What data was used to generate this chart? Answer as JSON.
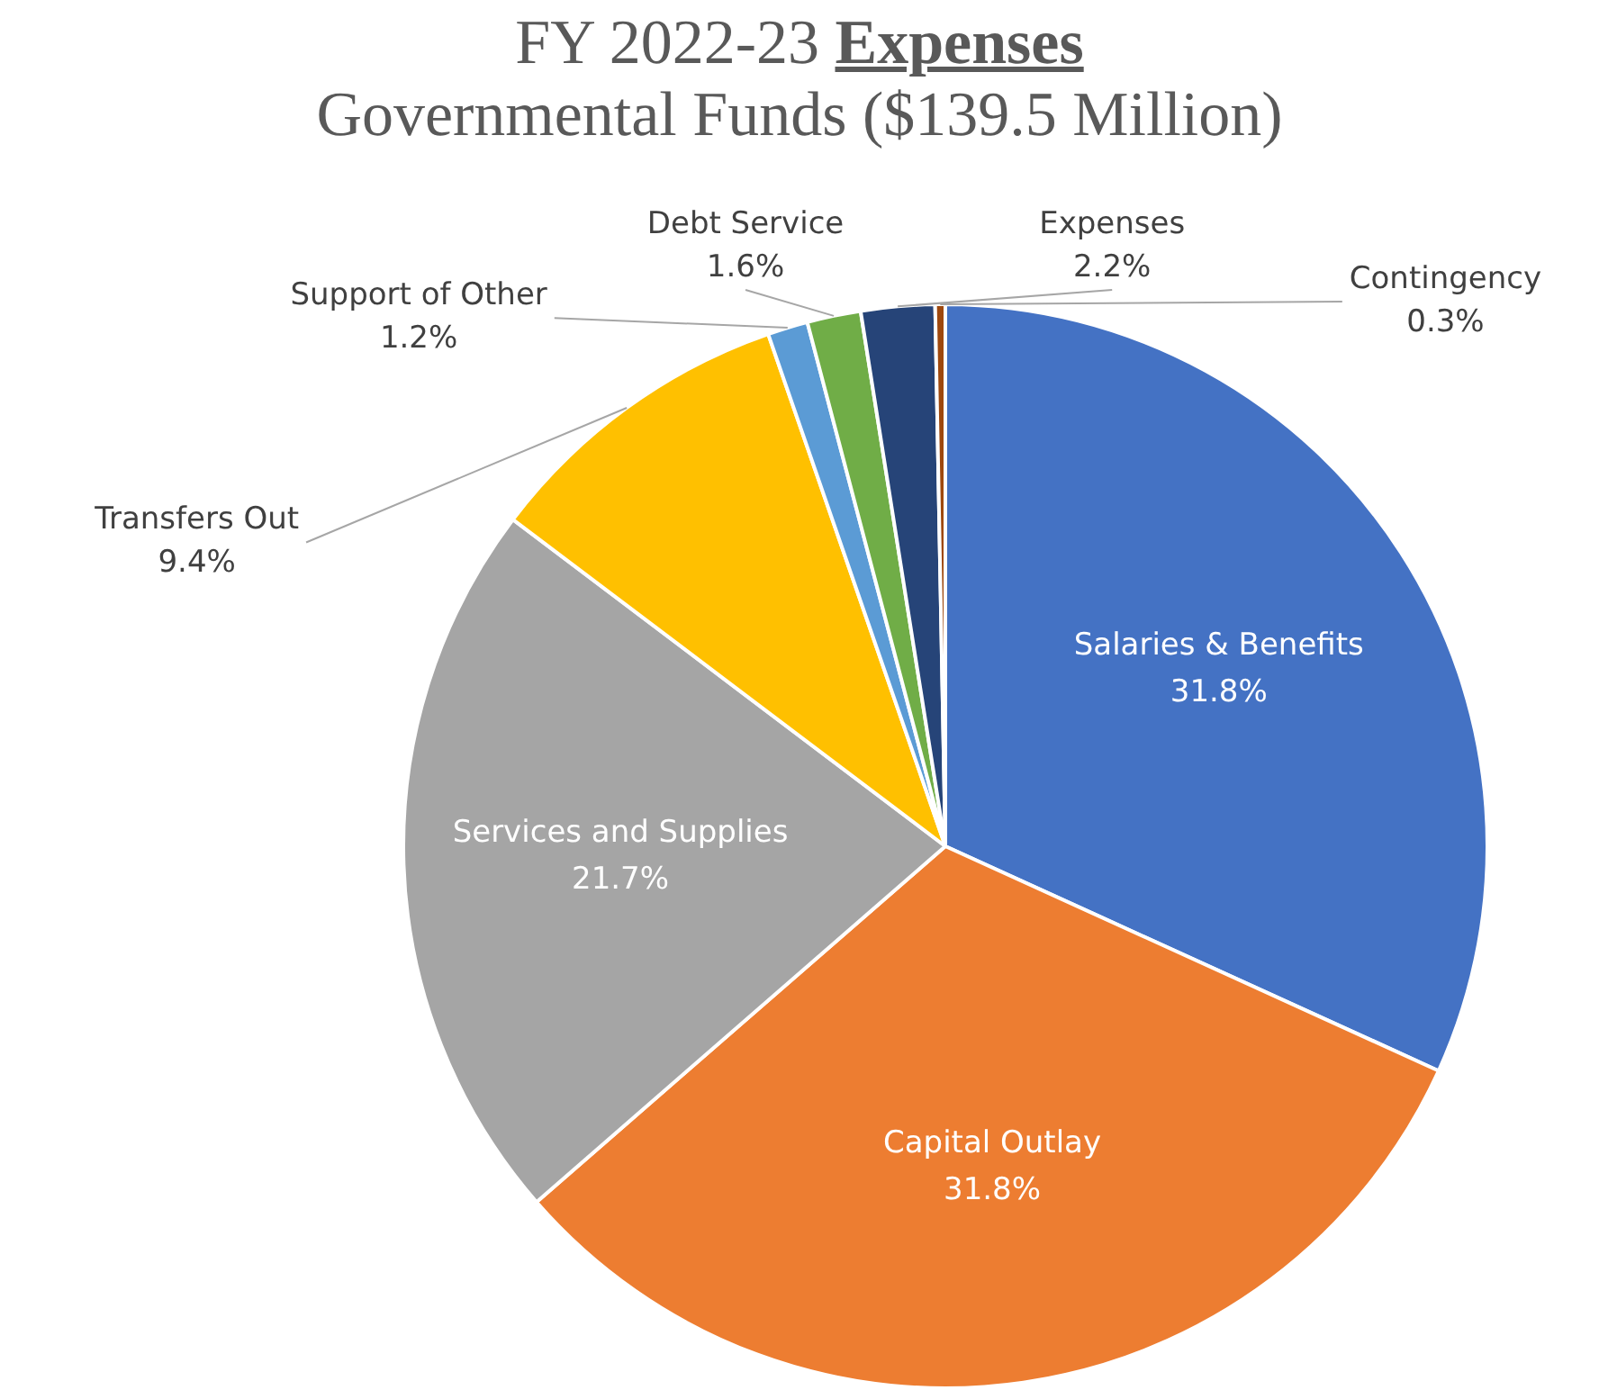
{
  "chart_data": {
    "type": "pie",
    "title": "FY 2022-23 Expenses",
    "subtitle": "Governmental Funds ($139.5 Million)",
    "categories": [
      "Salaries & Benefits",
      "Capital Outlay",
      "Services and Supplies",
      "Transfers Out",
      "Support of Other",
      "Debt Service",
      "Expenses",
      "Contingency"
    ],
    "values": [
      31.8,
      31.8,
      21.7,
      9.4,
      1.2,
      1.6,
      2.2,
      0.3
    ],
    "colors": [
      "#4472c4",
      "#ed7d31",
      "#a5a5a5",
      "#ffc000",
      "#5b9bd5",
      "#70ad47",
      "#264478",
      "#9e480e"
    ],
    "value_labels": [
      "31.8%",
      "31.8%",
      "21.7%",
      "9.4%",
      "1.2%",
      "1.6%",
      "2.2%",
      "0.3%"
    ],
    "legend": false
  }
}
